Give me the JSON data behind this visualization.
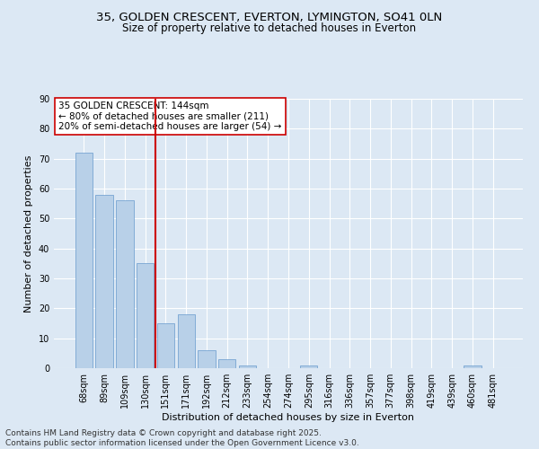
{
  "title_line1": "35, GOLDEN CRESCENT, EVERTON, LYMINGTON, SO41 0LN",
  "title_line2": "Size of property relative to detached houses in Everton",
  "xlabel": "Distribution of detached houses by size in Everton",
  "ylabel": "Number of detached properties",
  "categories": [
    "68sqm",
    "89sqm",
    "109sqm",
    "130sqm",
    "151sqm",
    "171sqm",
    "192sqm",
    "212sqm",
    "233sqm",
    "254sqm",
    "274sqm",
    "295sqm",
    "316sqm",
    "336sqm",
    "357sqm",
    "377sqm",
    "398sqm",
    "419sqm",
    "439sqm",
    "460sqm",
    "481sqm"
  ],
  "values": [
    72,
    58,
    56,
    35,
    15,
    18,
    6,
    3,
    1,
    0,
    0,
    1,
    0,
    0,
    0,
    0,
    0,
    0,
    0,
    1,
    0
  ],
  "bar_color": "#b8d0e8",
  "bar_edge_color": "#6699cc",
  "vline_x": 3.5,
  "vline_color": "#cc0000",
  "ylim": [
    0,
    90
  ],
  "yticks": [
    0,
    10,
    20,
    30,
    40,
    50,
    60,
    70,
    80,
    90
  ],
  "annotation_text": "35 GOLDEN CRESCENT: 144sqm\n← 80% of detached houses are smaller (211)\n20% of semi-detached houses are larger (54) →",
  "bg_color": "#dce8f4",
  "plot_bg_color": "#dce8f4",
  "grid_color": "#ffffff",
  "footer_line1": "Contains HM Land Registry data © Crown copyright and database right 2025.",
  "footer_line2": "Contains public sector information licensed under the Open Government Licence v3.0.",
  "title_fontsize": 9.5,
  "subtitle_fontsize": 8.5,
  "axis_label_fontsize": 8,
  "tick_fontsize": 7,
  "annotation_fontsize": 7.5,
  "footer_fontsize": 6.5
}
